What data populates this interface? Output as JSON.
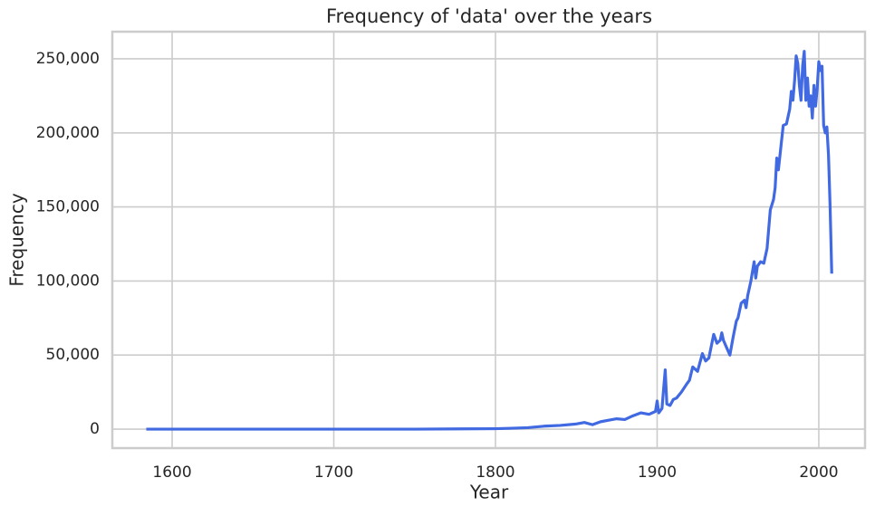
{
  "chart_data": {
    "type": "line",
    "title": "Frequency of 'data' over the years",
    "xlabel": "Year",
    "ylabel": "Frequency",
    "x": [
      1584,
      1600,
      1650,
      1700,
      1750,
      1800,
      1810,
      1820,
      1830,
      1840,
      1850,
      1855,
      1860,
      1865,
      1870,
      1875,
      1880,
      1885,
      1890,
      1895,
      1899,
      1900,
      1901,
      1903,
      1905,
      1906,
      1908,
      1910,
      1912,
      1915,
      1918,
      1920,
      1922,
      1925,
      1928,
      1930,
      1932,
      1935,
      1937,
      1939,
      1940,
      1941,
      1943,
      1945,
      1947,
      1949,
      1950,
      1952,
      1954,
      1955,
      1956,
      1957,
      1958,
      1960,
      1961,
      1962,
      1964,
      1966,
      1968,
      1970,
      1972,
      1973,
      1974,
      1975,
      1976,
      1978,
      1980,
      1982,
      1983,
      1984,
      1985,
      1986,
      1987,
      1988,
      1989,
      1990,
      1991,
      1992,
      1993,
      1994,
      1995,
      1996,
      1997,
      1998,
      1999,
      2000,
      2001,
      2002,
      2003,
      2004,
      2005,
      2006,
      2007,
      2008
    ],
    "series": [
      {
        "name": "Frequency",
        "color": "#4169e1",
        "values": [
          0,
          0,
          0,
          0,
          0,
          300,
          600,
          1000,
          2000,
          2500,
          3500,
          4500,
          3000,
          5000,
          6000,
          7000,
          6500,
          9000,
          11000,
          10000,
          12000,
          19000,
          11000,
          14000,
          40000,
          17000,
          16000,
          20000,
          21000,
          25000,
          30000,
          33000,
          42000,
          39000,
          51000,
          46000,
          48000,
          64000,
          58000,
          60000,
          65000,
          60000,
          55000,
          50000,
          62000,
          73000,
          75000,
          85000,
          87000,
          82000,
          90000,
          95000,
          100000,
          113000,
          102000,
          110000,
          113000,
          112000,
          122000,
          148000,
          155000,
          163000,
          183000,
          175000,
          185000,
          205000,
          206000,
          216000,
          228000,
          222000,
          235000,
          252000,
          247000,
          232000,
          222000,
          245000,
          255000,
          222000,
          237000,
          218000,
          225000,
          210000,
          232000,
          218000,
          230000,
          248000,
          242000,
          245000,
          205000,
          200000,
          204000,
          185000,
          150000,
          105000
        ]
      }
    ],
    "xlim": [
      1563,
      2028.6
    ],
    "xticks": [
      1600,
      1700,
      1800,
      1900,
      2000
    ],
    "ylim": [
      -12800,
      268300
    ],
    "yticks": [
      0,
      {
        "value": 50000,
        "label": "50,000"
      },
      {
        "value": 100000,
        "label": "100,000"
      },
      {
        "value": 150000,
        "label": "150,000"
      },
      {
        "value": 200000,
        "label": "200,000"
      },
      {
        "value": 250000,
        "label": "250,000"
      }
    ],
    "grid": true
  }
}
